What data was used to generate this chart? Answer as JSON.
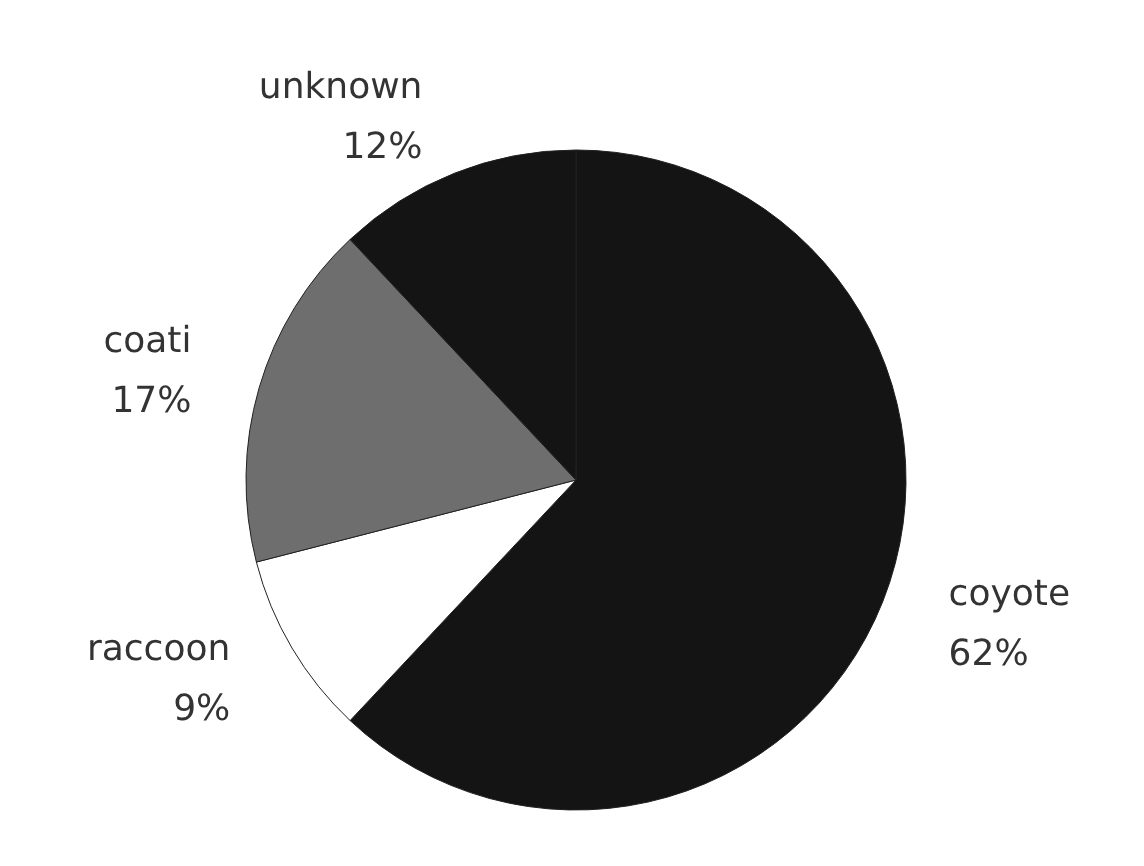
{
  "chart_data": {
    "type": "pie",
    "categories": [
      "coyote",
      "raccoon",
      "coati",
      "unknown"
    ],
    "values": [
      62,
      9,
      17,
      12
    ],
    "value_labels": [
      "62%",
      "9%",
      "17%",
      "12%"
    ],
    "colors": [
      "#141414",
      "#ffffff",
      "#6e6e6e",
      "#141414"
    ]
  }
}
